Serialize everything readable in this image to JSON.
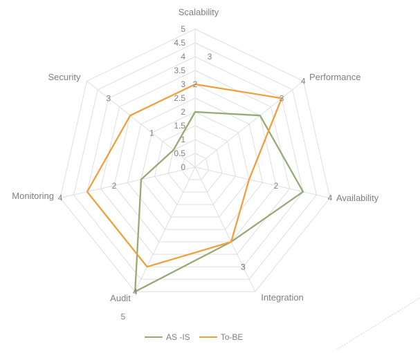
{
  "chart_data": {
    "type": "radar",
    "categories": [
      "Scalability",
      "Performance",
      "Availability",
      "Integration",
      "Audit",
      "Monitoring",
      "Security"
    ],
    "series": [
      {
        "name": "AS -IS",
        "color": "#96AA73",
        "values": [
          2,
          3,
          4,
          3,
          5,
          2,
          1
        ]
      },
      {
        "name": "To-BE",
        "color": "#F19F3C",
        "values": [
          3,
          4,
          2,
          3,
          4,
          4,
          3
        ]
      }
    ],
    "axis": {
      "min": 0,
      "max": 5,
      "step": 0.5,
      "tick_labels": [
        "0",
        "0.5",
        "1",
        "1.5",
        "2",
        "2.5",
        "3",
        "3.5",
        "4",
        "4.5",
        "5"
      ]
    },
    "grid": true,
    "data_labels": true,
    "legend_position": "bottom",
    "colors": {
      "gridline": "#DEDEDE",
      "text": "#7F7F7F"
    }
  }
}
